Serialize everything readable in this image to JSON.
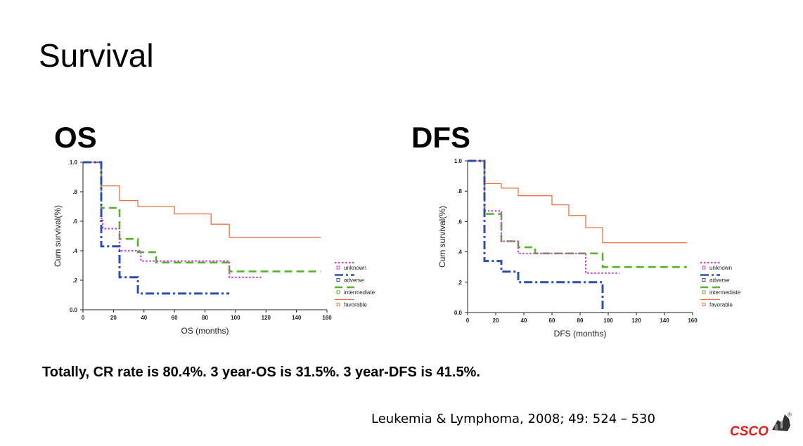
{
  "slide": {
    "title": "Survival",
    "summary": "Totally, CR rate is 80.4%. 3 year-OS is 31.5%. 3 year-DFS is 41.5%.",
    "citation": "Leukemia & Lymphoma, 2008; 49: 524 – 530",
    "logo_text": "CSCO",
    "logo_mark": "®"
  },
  "panels": {
    "os_label": "OS",
    "dfs_label": "DFS"
  },
  "colors": {
    "unknown": "#cc44cc",
    "adverse": "#2b4fb0",
    "intermediate": "#55b52a",
    "favorable": "#f07040",
    "logo": "#e0201a"
  },
  "chart_data": [
    {
      "type": "line",
      "title": "OS",
      "xlabel": "OS (months)",
      "ylabel": "Cum survival(%)",
      "xlim": [
        0,
        160
      ],
      "ylim": [
        0,
        1.0
      ],
      "xticks": [
        0,
        20,
        40,
        60,
        80,
        100,
        120,
        140,
        160
      ],
      "yticks": [
        0.0,
        0.2,
        0.4,
        0.6,
        0.8,
        1.0
      ],
      "ytick_labels": [
        "0.0",
        ".2",
        ".4",
        ".6",
        ".8",
        "1.0"
      ],
      "legend": [
        "unknown",
        "adverse",
        "intermediate",
        "favorable"
      ],
      "series": [
        {
          "name": "unknown",
          "x": [
            0,
            12,
            12,
            13,
            13,
            24,
            24,
            38,
            38,
            96,
            96,
            118
          ],
          "y": [
            1.0,
            1.0,
            0.62,
            0.62,
            0.55,
            0.55,
            0.4,
            0.4,
            0.33,
            0.33,
            0.22,
            0.22
          ]
        },
        {
          "name": "adverse",
          "x": [
            0,
            12,
            12,
            24,
            24,
            36,
            36,
            96
          ],
          "y": [
            1.0,
            1.0,
            0.43,
            0.43,
            0.22,
            0.22,
            0.11,
            0.11
          ]
        },
        {
          "name": "intermediate",
          "x": [
            0,
            12,
            12,
            24,
            24,
            36,
            36,
            48,
            48,
            96,
            96,
            156
          ],
          "y": [
            1.0,
            1.0,
            0.69,
            0.69,
            0.48,
            0.48,
            0.39,
            0.39,
            0.32,
            0.32,
            0.26,
            0.26
          ]
        },
        {
          "name": "favorable",
          "x": [
            0,
            12,
            12,
            24,
            24,
            36,
            36,
            60,
            60,
            84,
            84,
            96,
            96,
            156
          ],
          "y": [
            1.0,
            1.0,
            0.84,
            0.84,
            0.74,
            0.74,
            0.7,
            0.7,
            0.65,
            0.65,
            0.58,
            0.58,
            0.49,
            0.49
          ]
        }
      ]
    },
    {
      "type": "line",
      "title": "DFS",
      "xlabel": "DFS (months)",
      "ylabel": "Cum survival(%)",
      "xlim": [
        0,
        160
      ],
      "ylim": [
        0,
        1.0
      ],
      "xticks": [
        0,
        20,
        40,
        60,
        80,
        100,
        120,
        140,
        160
      ],
      "yticks": [
        0.0,
        0.2,
        0.4,
        0.6,
        0.8,
        1.0
      ],
      "ytick_labels": [
        "0.0",
        ".2",
        ".4",
        ".6",
        ".8",
        "1.0"
      ],
      "legend": [
        "unknown",
        "adverse",
        "intermediate",
        "favorable"
      ],
      "series": [
        {
          "name": "unknown",
          "x": [
            0,
            12,
            12,
            24,
            24,
            36,
            36,
            84,
            84,
            108
          ],
          "y": [
            1.0,
            1.0,
            0.67,
            0.67,
            0.47,
            0.47,
            0.39,
            0.39,
            0.26,
            0.26
          ]
        },
        {
          "name": "adverse",
          "x": [
            0,
            12,
            12,
            24,
            24,
            36,
            36,
            96,
            96
          ],
          "y": [
            1.0,
            1.0,
            0.34,
            0.34,
            0.27,
            0.27,
            0.2,
            0.2,
            0.0
          ]
        },
        {
          "name": "intermediate",
          "x": [
            0,
            12,
            12,
            24,
            24,
            36,
            36,
            48,
            48,
            96,
            96,
            156
          ],
          "y": [
            1.0,
            1.0,
            0.65,
            0.65,
            0.47,
            0.47,
            0.43,
            0.43,
            0.39,
            0.39,
            0.3,
            0.3
          ]
        },
        {
          "name": "favorable",
          "x": [
            0,
            12,
            12,
            24,
            24,
            36,
            36,
            60,
            60,
            72,
            72,
            84,
            84,
            96,
            96,
            156
          ],
          "y": [
            1.0,
            1.0,
            0.85,
            0.85,
            0.82,
            0.82,
            0.77,
            0.77,
            0.71,
            0.71,
            0.64,
            0.64,
            0.56,
            0.56,
            0.46,
            0.46
          ]
        }
      ]
    }
  ]
}
